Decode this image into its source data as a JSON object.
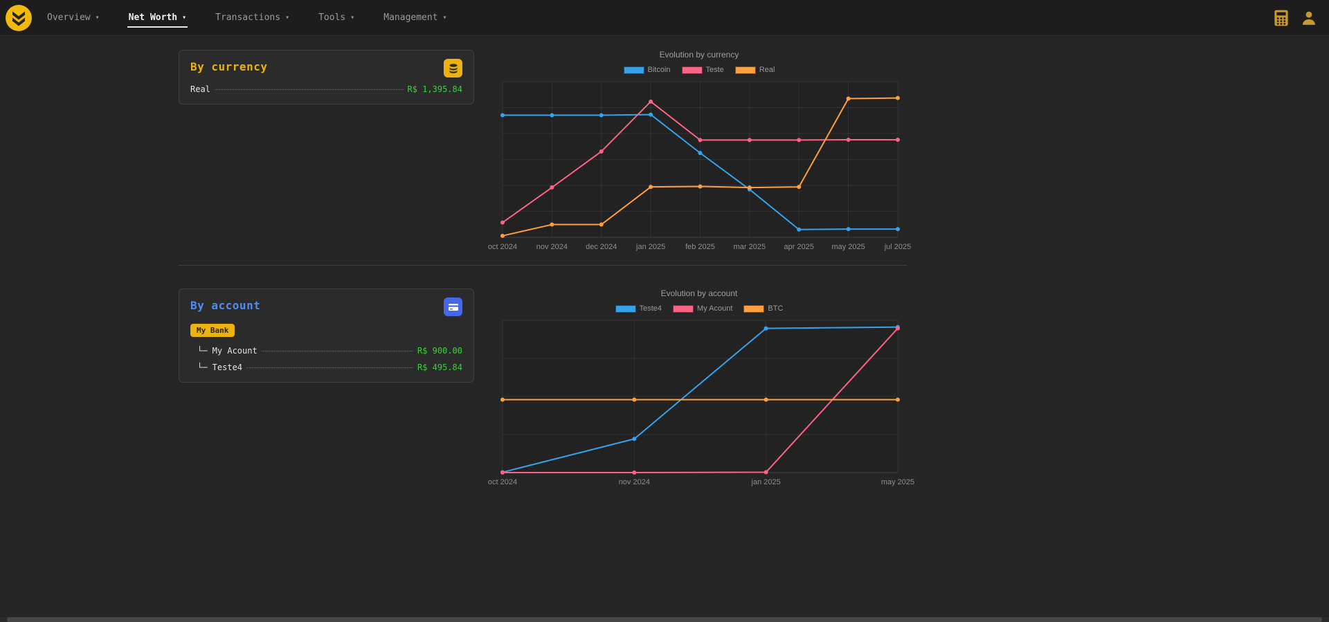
{
  "navbar": {
    "items": [
      {
        "label": "Overview"
      },
      {
        "label": "Net Worth"
      },
      {
        "label": "Transactions"
      },
      {
        "label": "Tools"
      },
      {
        "label": "Management"
      }
    ],
    "active_item": "Net Worth"
  },
  "cards": {
    "currency": {
      "title": "By currency",
      "icon": "coins-icon",
      "rows": [
        {
          "label": "Real",
          "value": "R$ 1,395.84"
        }
      ]
    },
    "account": {
      "title": "By account",
      "icon": "bank-card-icon",
      "badge": "My Bank",
      "rows": [
        {
          "label": "└─ My Acount",
          "value": "R$ 900.00"
        },
        {
          "label": "└─ Teste4",
          "value": "R$ 495.84"
        }
      ]
    }
  },
  "colors": {
    "accent_yellow": "#ecb30e",
    "accent_blue": "#4f8df5",
    "value_green": "#3ccf3c",
    "series_blue": "#36a2eb",
    "series_pink": "#ff6384",
    "series_orange": "#ff9f40"
  },
  "chart_data": [
    {
      "type": "line",
      "title": "Evolution by currency",
      "categories": [
        "oct 2024",
        "nov 2024",
        "dec 2024",
        "jan 2025",
        "feb 2025",
        "mar 2025",
        "apr 2025",
        "may 2025",
        "jul 2025"
      ],
      "series": [
        {
          "name": "Bitcoin",
          "color": "#36a2eb",
          "values": [
            1224,
            1224,
            1224,
            1230,
            845,
            480,
            78,
            82,
            82
          ]
        },
        {
          "name": "Teste",
          "color": "#ff6384",
          "values": [
            148,
            500,
            860,
            1360,
            975,
            975,
            975,
            978,
            978
          ]
        },
        {
          "name": "Real",
          "color": "#ff9f40",
          "values": [
            15,
            128,
            128,
            505,
            510,
            498,
            505,
            1390,
            1396
          ]
        }
      ],
      "ylim": [
        0,
        1560
      ],
      "grid": true,
      "grid_rows": 6,
      "legend_position": "top"
    },
    {
      "type": "line",
      "title": "Evolution by account",
      "categories": [
        "oct 2024",
        "nov 2024",
        "jan 2025",
        "may 2025"
      ],
      "series": [
        {
          "name": "Teste4",
          "color": "#36a2eb",
          "values": [
            2,
            210,
            900,
            908
          ]
        },
        {
          "name": "My Acount",
          "color": "#ff6384",
          "values": [
            0,
            0,
            2,
            900
          ]
        },
        {
          "name": "BTC",
          "color": "#ff9f40",
          "values": [
            455,
            455,
            455,
            455
          ]
        }
      ],
      "ylim": [
        0,
        950
      ],
      "grid": true,
      "grid_rows": 4,
      "legend_position": "top"
    }
  ]
}
